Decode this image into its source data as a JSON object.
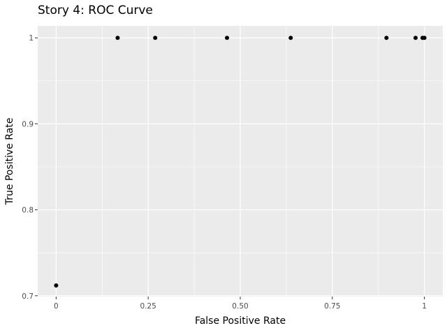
{
  "chart_data": {
    "type": "scatter",
    "title": "Story 4: ROC Curve",
    "xlabel": "False Positive Rate",
    "ylabel": "True Positive Rate",
    "xlim": [
      -0.05,
      1.05
    ],
    "ylim": [
      0.699,
      1.014
    ],
    "x_ticks": [
      0,
      0.25,
      0.5,
      0.75,
      1
    ],
    "x_tick_labels": [
      "0",
      "0.25",
      "0.50",
      "0.75",
      "1"
    ],
    "y_ticks": [
      0.7,
      0.8,
      0.9,
      1
    ],
    "y_tick_labels": [
      "0.7",
      "0.8",
      "0.9",
      "1"
    ],
    "grid": true,
    "point_color": "#000000",
    "panel_color": "#ebebeb",
    "points": [
      {
        "x": 0,
        "y": 0.712
      },
      {
        "x": 0.167,
        "y": 1
      },
      {
        "x": 0.269,
        "y": 1
      },
      {
        "x": 0.464,
        "y": 1
      },
      {
        "x": 0.637,
        "y": 1
      },
      {
        "x": 0.897,
        "y": 1
      },
      {
        "x": 0.976,
        "y": 1
      },
      {
        "x": 0.995,
        "y": 1
      },
      {
        "x": 1.0,
        "y": 1
      }
    ]
  }
}
